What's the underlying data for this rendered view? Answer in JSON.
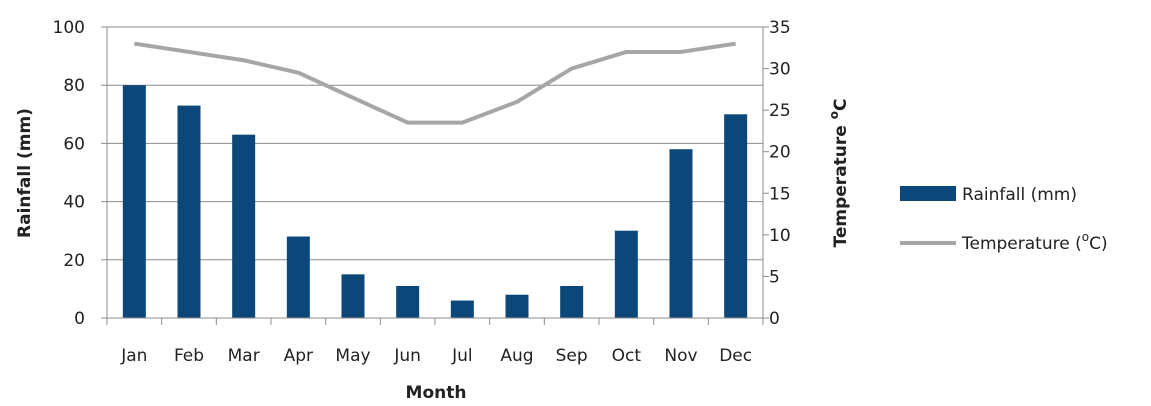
{
  "chart_data": {
    "type": "bar",
    "categories": [
      "Jan",
      "Feb",
      "Mar",
      "Apr",
      "May",
      "Jun",
      "Jul",
      "Aug",
      "Sep",
      "Oct",
      "Nov",
      "Dec"
    ],
    "series": [
      {
        "name": "Rainfall (mm)",
        "type": "bar",
        "axis": "left",
        "color": "#0b4779",
        "values": [
          80,
          73,
          63,
          28,
          15,
          11,
          6,
          8,
          11,
          30,
          58,
          70
        ]
      },
      {
        "name": "Temperature (°C)",
        "type": "line",
        "axis": "right",
        "color": "#a6a6a6",
        "values": [
          33,
          32,
          31,
          29.5,
          26.5,
          23.5,
          23.5,
          26,
          30,
          32,
          32,
          33
        ]
      }
    ],
    "xlabel": "Month",
    "ylabel_left": "Rainfall  (mm)",
    "ylabel_right": "Temperature °C",
    "ylim_left": [
      0,
      100
    ],
    "ylim_right": [
      0,
      35
    ],
    "yticks_left": [
      "0",
      "20",
      "40",
      "60",
      "80",
      "100"
    ],
    "yticks_right": [
      "0",
      "5",
      "10",
      "15",
      "20",
      "25",
      "30",
      "35"
    ],
    "grid": true,
    "legend_position": "right",
    "legend": {
      "rainfall": "Rainfall (mm)",
      "temp_prefix": "Temperature (",
      "temp_sup": "o",
      "temp_suffix": "C)"
    },
    "right_title_main": "Temperature ",
    "right_title_sup": "o",
    "right_title_unit": "C"
  }
}
